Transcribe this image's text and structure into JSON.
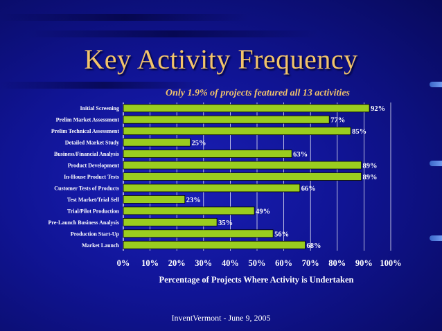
{
  "slide": {
    "title": "Key Activity Frequency",
    "footer": "InventVermont - June 9, 2005"
  },
  "colors": {
    "title": "#f2c46b",
    "bar_fill": "#9acd1f",
    "bar_stroke": "#000000",
    "grid": "#ffffff",
    "text": "#ffffff"
  },
  "chart_data": {
    "type": "bar",
    "orientation": "horizontal",
    "title": "Only 1.9% of projects featured all 13 activities",
    "xlabel": "Percentage of Projects Where Activity is Undertaken",
    "ylabel": "",
    "xlim": [
      0,
      100
    ],
    "xticks": [
      "0%",
      "10%",
      "20%",
      "30%",
      "40%",
      "50%",
      "60%",
      "70%",
      "80%",
      "90%",
      "100%"
    ],
    "grid": true,
    "legend": "none",
    "categories": [
      "Initial Screening",
      "Prelim Market Assessment",
      "Prelim Technical Assessment",
      "Detailed Market Study",
      "Business/Financial Analysis",
      "Product Development",
      "In-House Product Tests",
      "Customer Tests of Products",
      "Test Market/Trial Sell",
      "Trial/Pilot Production",
      "Pre-Launch Business Analysis",
      "Production Start-Up",
      "Market Launch"
    ],
    "values": [
      92,
      77,
      85,
      25,
      63,
      89,
      89,
      66,
      23,
      49,
      35,
      56,
      68
    ],
    "data_labels": [
      "92%",
      "77%",
      "85%",
      "25%",
      "63%",
      "89%",
      "89%",
      "66%",
      "23%",
      "49%",
      "35%",
      "56%",
      "68%"
    ]
  }
}
